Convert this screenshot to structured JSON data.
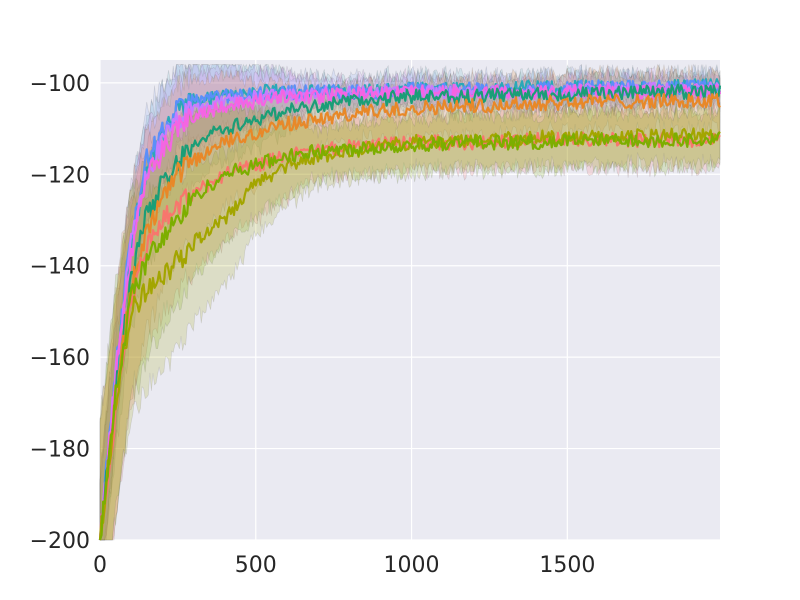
{
  "chart_data": {
    "type": "line",
    "title": "",
    "xlabel": "",
    "ylabel": "",
    "xlim": [
      0,
      1990
    ],
    "ylim": [
      -200,
      -95
    ],
    "xticks": [
      0,
      500,
      1000,
      1500
    ],
    "yticks": [
      -200,
      -180,
      -160,
      -140,
      -120,
      -100
    ],
    "xtick_labels": [
      "0",
      "500",
      "1000",
      "1500"
    ],
    "ytick_labels": [
      "−200",
      "−180",
      "−160",
      "−140",
      "−120",
      "−100"
    ],
    "grid": true,
    "legend": "none",
    "background": "#eaeaf2",
    "shaded_bands": true,
    "x": [
      0,
      50,
      100,
      150,
      200,
      250,
      300,
      400,
      500,
      600,
      700,
      800,
      900,
      1000,
      1200,
      1400,
      1600,
      1800,
      1990
    ],
    "series": [
      {
        "color": "#2aa8b8",
        "values": [
          -200,
          -165,
          -135,
          -118,
          -112,
          -106,
          -104,
          -103,
          -102,
          -102,
          -102,
          -102,
          -101.5,
          -101.5,
          -101.5,
          -101,
          -101,
          -101,
          -100.5
        ]
      },
      {
        "color": "#5b8ff9",
        "values": [
          -200,
          -163,
          -133,
          -117,
          -111,
          -106,
          -104,
          -103,
          -102.5,
          -102,
          -102,
          -102,
          -102,
          -101.5,
          -101.5,
          -101.5,
          -101,
          -101,
          -101
        ]
      },
      {
        "color": "#c77cff",
        "values": [
          -200,
          -164,
          -135,
          -120,
          -113,
          -108,
          -106,
          -104,
          -103,
          -103,
          -102.5,
          -102,
          -102,
          -102,
          -102,
          -102,
          -101.5,
          -101.5,
          -101.5
        ]
      },
      {
        "color": "#f564e3",
        "values": [
          -200,
          -165,
          -137,
          -121,
          -115,
          -110,
          -107,
          -105,
          -104,
          -103,
          -103,
          -102.5,
          -102.5,
          -102,
          -102,
          -102,
          -102,
          -102,
          -102
        ]
      },
      {
        "color": "#1b9e77",
        "values": [
          -200,
          -168,
          -143,
          -129,
          -122,
          -117,
          -113,
          -110,
          -108,
          -106,
          -105,
          -104,
          -103.5,
          -103,
          -103,
          -102.5,
          -102.5,
          -102,
          -102
        ]
      },
      {
        "color": "#e88828",
        "values": [
          -200,
          -170,
          -145,
          -133,
          -126,
          -120,
          -117,
          -113,
          -111,
          -109,
          -108,
          -107,
          -106,
          -105.5,
          -105,
          -104.5,
          -104,
          -104,
          -104
        ]
      },
      {
        "color": "#f8766d",
        "values": [
          -200,
          -172,
          -148,
          -136,
          -130,
          -127,
          -124,
          -120,
          -118,
          -116,
          -115,
          -114,
          -113.5,
          -113,
          -113,
          -112.5,
          -112.5,
          -112.5,
          -112.5
        ]
      },
      {
        "color": "#a3a500",
        "values": [
          -200,
          -170,
          -150,
          -145,
          -142,
          -139,
          -135,
          -130,
          -122,
          -118,
          -116,
          -115,
          -114,
          -113,
          -112.5,
          -112,
          -112,
          -111.5,
          -111.5
        ]
      },
      {
        "color": "#7cae00",
        "values": [
          -200,
          -168,
          -147,
          -139,
          -134,
          -130,
          -125,
          -120,
          -118,
          -116,
          -115,
          -114.5,
          -114,
          -113.5,
          -113,
          -113,
          -112.5,
          -112.5,
          -112.5
        ]
      }
    ]
  }
}
